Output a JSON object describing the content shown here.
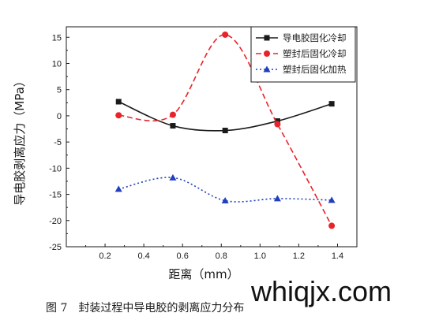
{
  "chart_data": {
    "type": "line",
    "title": "",
    "xlabel": "距离（mm）",
    "ylabel": "导电胶剥离应力（MPa）",
    "xlim": [
      0.0,
      1.5
    ],
    "ylim": [
      -25,
      17
    ],
    "xticks": [
      0.2,
      0.4,
      0.6,
      0.8,
      1.0,
      1.2,
      1.4
    ],
    "yticks": [
      15,
      10,
      5,
      0,
      -5,
      -10,
      -15,
      -20,
      -25
    ],
    "xtick_labels": [
      "0.2",
      "0.4",
      "0.6",
      "0.8",
      "1.0",
      "1.2",
      "1.4"
    ],
    "ytick_labels": [
      "15",
      "10",
      "5",
      "0",
      "-5",
      "-10",
      "-15",
      "-20",
      "-25"
    ],
    "grid": false,
    "legend_position": "top-right",
    "series": [
      {
        "name": "导电胶固化冷却",
        "color": "#1a1a1a",
        "marker": "square",
        "line_style": "solid",
        "x": [
          0.27,
          0.55,
          0.82,
          1.09,
          1.37
        ],
        "y": [
          2.7,
          -1.9,
          -2.8,
          -1.0,
          2.3
        ]
      },
      {
        "name": "塑封后固化冷却",
        "color": "#e8232a",
        "marker": "circle",
        "line_style": "dashed",
        "x": [
          0.27,
          0.55,
          0.82,
          1.09,
          1.37
        ],
        "y": [
          0.1,
          0.2,
          15.5,
          -1.6,
          -21.0
        ]
      },
      {
        "name": "塑封后固化加热",
        "color": "#1f3fbf",
        "marker": "triangle",
        "line_style": "dotted",
        "x": [
          0.27,
          0.55,
          0.82,
          1.09,
          1.37
        ],
        "y": [
          -14.0,
          -11.8,
          -16.2,
          -15.8,
          -16.1
        ]
      }
    ]
  },
  "caption": "图 7　封装过程中导电胶的剥离应力分布",
  "watermark": "whiqjx.com"
}
